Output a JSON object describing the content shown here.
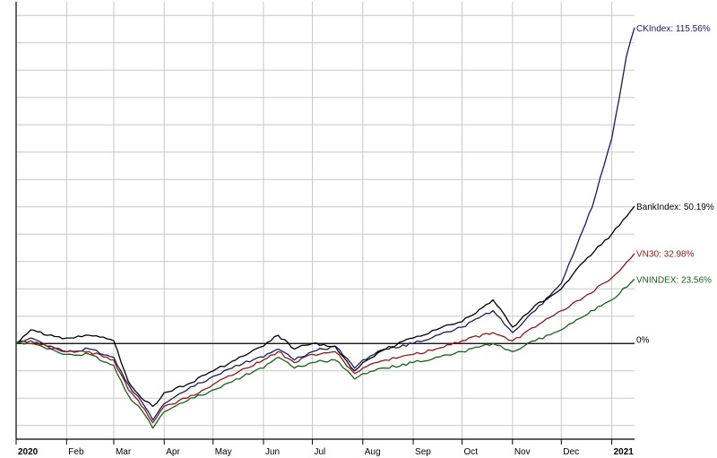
{
  "chart_data": {
    "type": "line",
    "title": "",
    "xlabel": "",
    "ylabel": "",
    "x_range": [
      "2020-01-01",
      "2021-01-15"
    ],
    "ylim": [
      -35,
      125
    ],
    "grid": true,
    "legend": "end-of-line labels",
    "zero_label": "0%",
    "x_ticks": [
      {
        "date": "2020-01-01",
        "label": "2020",
        "bold": true
      },
      {
        "date": "2020-02-01",
        "label": "Feb",
        "bold": false
      },
      {
        "date": "2020-03-01",
        "label": "Mar",
        "bold": false
      },
      {
        "date": "2020-04-01",
        "label": "Apr",
        "bold": false
      },
      {
        "date": "2020-05-01",
        "label": "May",
        "bold": false
      },
      {
        "date": "2020-06-01",
        "label": "Jun",
        "bold": false
      },
      {
        "date": "2020-07-01",
        "label": "Jul",
        "bold": false
      },
      {
        "date": "2020-08-01",
        "label": "Aug",
        "bold": false
      },
      {
        "date": "2020-09-01",
        "label": "Sep",
        "bold": false
      },
      {
        "date": "2020-10-01",
        "label": "Oct",
        "bold": false
      },
      {
        "date": "2020-11-01",
        "label": "Nov",
        "bold": false
      },
      {
        "date": "2020-12-01",
        "label": "Dec",
        "bold": false
      },
      {
        "date": "2021-01-01",
        "label": "2021",
        "bold": true
      }
    ],
    "series": [
      {
        "name": "CKIndex",
        "end_label": "CKIndex: 115.56%",
        "color": "#1a1a5e",
        "points": [
          [
            "2020-01-01",
            0
          ],
          [
            "2020-01-10",
            2
          ],
          [
            "2020-01-20",
            -1
          ],
          [
            "2020-02-01",
            -3
          ],
          [
            "2020-02-15",
            -2
          ],
          [
            "2020-03-01",
            -5
          ],
          [
            "2020-03-10",
            -15
          ],
          [
            "2020-03-20",
            -23
          ],
          [
            "2020-03-25",
            -28
          ],
          [
            "2020-04-01",
            -22
          ],
          [
            "2020-04-15",
            -17
          ],
          [
            "2020-05-01",
            -12
          ],
          [
            "2020-05-15",
            -8
          ],
          [
            "2020-06-01",
            -5
          ],
          [
            "2020-06-10",
            -2
          ],
          [
            "2020-06-20",
            -6
          ],
          [
            "2020-07-01",
            -3
          ],
          [
            "2020-07-15",
            -1
          ],
          [
            "2020-07-27",
            -9
          ],
          [
            "2020-08-01",
            -6
          ],
          [
            "2020-08-15",
            -2
          ],
          [
            "2020-09-01",
            0
          ],
          [
            "2020-09-15",
            3
          ],
          [
            "2020-10-01",
            6
          ],
          [
            "2020-10-20",
            12
          ],
          [
            "2020-11-01",
            4
          ],
          [
            "2020-11-15",
            12
          ],
          [
            "2020-12-01",
            22
          ],
          [
            "2020-12-10",
            35
          ],
          [
            "2020-12-20",
            50
          ],
          [
            "2021-01-01",
            75
          ],
          [
            "2021-01-10",
            105
          ],
          [
            "2021-01-15",
            115.56
          ]
        ]
      },
      {
        "name": "BankIndex",
        "end_label": "BankIndex: 50.19%",
        "color": "#000000",
        "points": [
          [
            "2020-01-01",
            0
          ],
          [
            "2020-01-10",
            5
          ],
          [
            "2020-01-20",
            3
          ],
          [
            "2020-02-01",
            2
          ],
          [
            "2020-02-15",
            3
          ],
          [
            "2020-03-01",
            1
          ],
          [
            "2020-03-10",
            -14
          ],
          [
            "2020-03-20",
            -21
          ],
          [
            "2020-03-25",
            -23
          ],
          [
            "2020-04-01",
            -18
          ],
          [
            "2020-04-15",
            -15
          ],
          [
            "2020-05-01",
            -10
          ],
          [
            "2020-05-15",
            -6
          ],
          [
            "2020-06-01",
            -1
          ],
          [
            "2020-06-10",
            3
          ],
          [
            "2020-06-20",
            -2
          ],
          [
            "2020-07-01",
            0
          ],
          [
            "2020-07-15",
            -1
          ],
          [
            "2020-07-27",
            -10
          ],
          [
            "2020-08-01",
            -7
          ],
          [
            "2020-08-15",
            -2
          ],
          [
            "2020-09-01",
            2
          ],
          [
            "2020-09-15",
            5
          ],
          [
            "2020-10-01",
            8
          ],
          [
            "2020-10-20",
            16
          ],
          [
            "2020-11-01",
            6
          ],
          [
            "2020-11-15",
            14
          ],
          [
            "2020-12-01",
            20
          ],
          [
            "2020-12-15",
            30
          ],
          [
            "2021-01-01",
            40
          ],
          [
            "2021-01-15",
            50.19
          ]
        ]
      },
      {
        "name": "VN30",
        "end_label": "VN30: 32.98%",
        "color": "#8b1a1a",
        "points": [
          [
            "2020-01-01",
            0
          ],
          [
            "2020-01-10",
            1
          ],
          [
            "2020-01-20",
            -1
          ],
          [
            "2020-02-01",
            -3
          ],
          [
            "2020-02-15",
            -3
          ],
          [
            "2020-03-01",
            -6
          ],
          [
            "2020-03-10",
            -17
          ],
          [
            "2020-03-20",
            -24
          ],
          [
            "2020-03-25",
            -29
          ],
          [
            "2020-04-01",
            -23
          ],
          [
            "2020-04-15",
            -20
          ],
          [
            "2020-05-01",
            -15
          ],
          [
            "2020-05-15",
            -11
          ],
          [
            "2020-06-01",
            -6
          ],
          [
            "2020-06-10",
            -3
          ],
          [
            "2020-06-20",
            -7
          ],
          [
            "2020-07-01",
            -4
          ],
          [
            "2020-07-15",
            -3
          ],
          [
            "2020-07-27",
            -11
          ],
          [
            "2020-08-01",
            -9
          ],
          [
            "2020-08-15",
            -6
          ],
          [
            "2020-09-01",
            -4
          ],
          [
            "2020-09-15",
            -2
          ],
          [
            "2020-10-01",
            1
          ],
          [
            "2020-10-20",
            4
          ],
          [
            "2020-11-01",
            1
          ],
          [
            "2020-11-15",
            6
          ],
          [
            "2020-12-01",
            12
          ],
          [
            "2020-12-15",
            17
          ],
          [
            "2021-01-01",
            24
          ],
          [
            "2021-01-15",
            32.98
          ]
        ]
      },
      {
        "name": "VNINDEX",
        "end_label": "VNINDEX: 23.56%",
        "color": "#1a5e1a",
        "points": [
          [
            "2020-01-01",
            0
          ],
          [
            "2020-01-10",
            0
          ],
          [
            "2020-01-20",
            -2
          ],
          [
            "2020-02-01",
            -4
          ],
          [
            "2020-02-15",
            -4
          ],
          [
            "2020-03-01",
            -8
          ],
          [
            "2020-03-10",
            -19
          ],
          [
            "2020-03-20",
            -26
          ],
          [
            "2020-03-25",
            -31
          ],
          [
            "2020-04-01",
            -25
          ],
          [
            "2020-04-15",
            -21
          ],
          [
            "2020-05-01",
            -17
          ],
          [
            "2020-05-15",
            -13
          ],
          [
            "2020-06-01",
            -9
          ],
          [
            "2020-06-10",
            -5
          ],
          [
            "2020-06-20",
            -9
          ],
          [
            "2020-07-01",
            -7
          ],
          [
            "2020-07-15",
            -6
          ],
          [
            "2020-07-27",
            -13
          ],
          [
            "2020-08-01",
            -11
          ],
          [
            "2020-08-15",
            -9
          ],
          [
            "2020-09-01",
            -7
          ],
          [
            "2020-09-15",
            -5
          ],
          [
            "2020-10-01",
            -3
          ],
          [
            "2020-10-20",
            0
          ],
          [
            "2020-11-01",
            -3
          ],
          [
            "2020-11-15",
            1
          ],
          [
            "2020-12-01",
            5
          ],
          [
            "2020-12-15",
            10
          ],
          [
            "2021-01-01",
            16
          ],
          [
            "2021-01-15",
            23.56
          ]
        ]
      }
    ]
  }
}
